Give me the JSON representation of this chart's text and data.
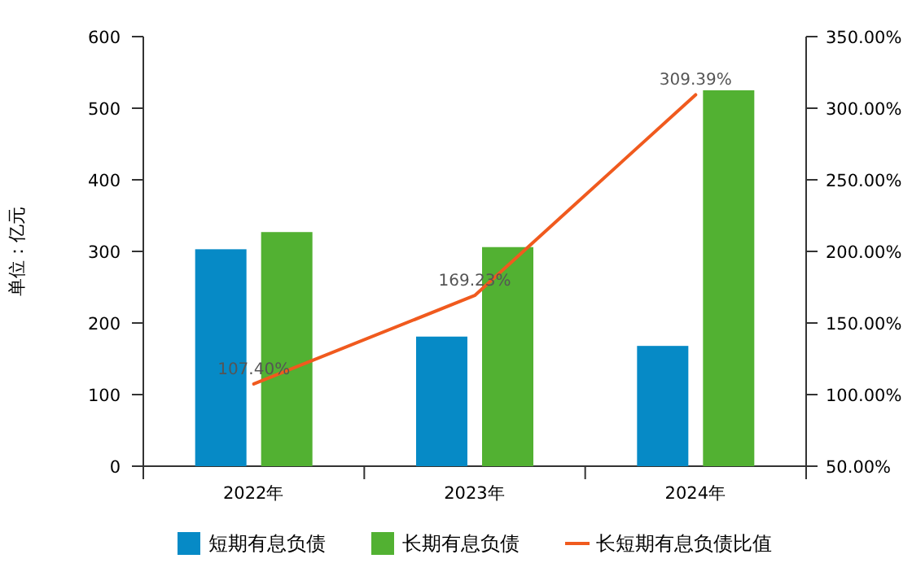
{
  "chart_data": {
    "type": "bar",
    "categories": [
      "2022年",
      "2023年",
      "2024年"
    ],
    "ylabel": "单位：亿元",
    "ylim": [
      0,
      600
    ],
    "yticks": [
      0,
      100,
      200,
      300,
      400,
      500,
      600
    ],
    "y2lim": [
      50,
      350
    ],
    "y2ticks": [
      {
        "value": 50,
        "label": "50.00%"
      },
      {
        "value": 100,
        "label": "100.00%"
      },
      {
        "value": 150,
        "label": "150.00%"
      },
      {
        "value": 200,
        "label": "200.00%"
      },
      {
        "value": 250,
        "label": "250.00%"
      },
      {
        "value": 300,
        "label": "300.00%"
      },
      {
        "value": 350,
        "label": "350.00%"
      }
    ],
    "legend": "bottom",
    "series": [
      {
        "name": "短期有息负债",
        "color": "#068ac6",
        "values": [
          303,
          181,
          168
        ]
      },
      {
        "name": "长期有息负债",
        "color": "#52b132",
        "values": [
          327,
          306,
          525
        ]
      },
      {
        "name": "长短期有息负债比值",
        "color": "#f05a1e",
        "type": "line",
        "axis": "y2",
        "values": [
          107.4,
          169.23,
          309.39
        ],
        "value_labels": [
          "107.40%",
          "169.23%",
          "309.39%"
        ]
      }
    ]
  }
}
